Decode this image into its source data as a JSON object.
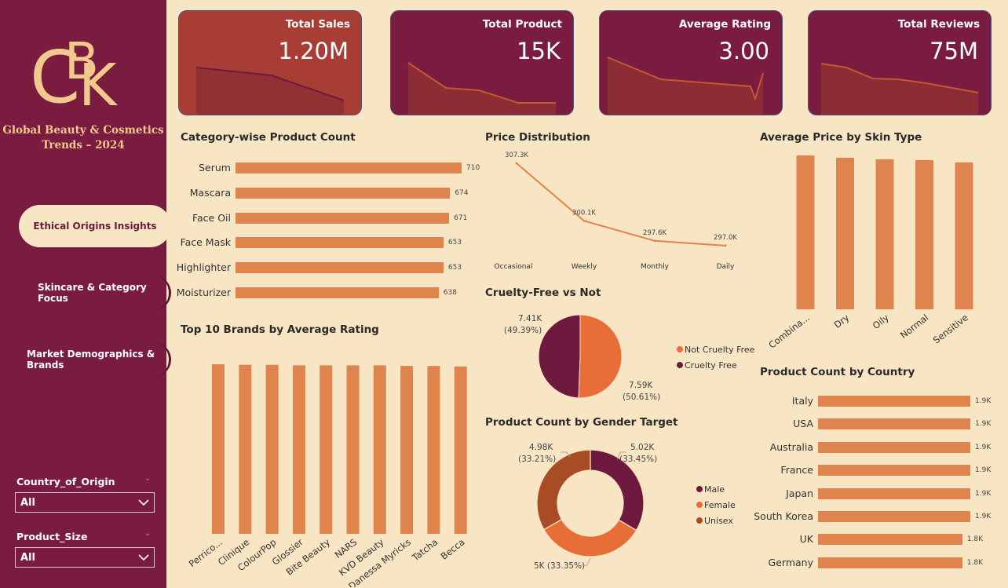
{
  "sidebar": {
    "logo_text": "CBK",
    "title_line1": "Global Beauty & Cosmetics",
    "title_line2": "Trends – 2024",
    "nav": [
      {
        "label": "Ethical Origins Insights",
        "active": true
      },
      {
        "label": "Skincare & Category Focus",
        "active": false
      },
      {
        "label": "Market Demographics & Brands",
        "active": false
      }
    ],
    "filters": [
      {
        "label": "Country_of_Origin",
        "value": "All"
      },
      {
        "label": "Product_Size",
        "value": "All"
      }
    ]
  },
  "kpis": [
    {
      "label": "Total Sales",
      "value": "1.20M"
    },
    {
      "label": "Total Product",
      "value": "15K"
    },
    {
      "label": "Average Rating",
      "value": "3.00"
    },
    {
      "label": "Total Reviews",
      "value": "75M"
    }
  ],
  "colors": {
    "sidebar": "#7a1b40",
    "background": "#f8e5c3",
    "bar": "#e0844d",
    "maroon": "#6e1a3e",
    "orange": "#e86d36",
    "brown": "#a84c25"
  },
  "chart_data": [
    {
      "type": "bar",
      "orientation": "horizontal",
      "title": "Category-wise Product Count",
      "categories": [
        "Serum",
        "Mascara",
        "Face Oil",
        "Face Mask",
        "Highlighter",
        "Moisturizer"
      ],
      "values": [
        710,
        674,
        671,
        653,
        653,
        638
      ]
    },
    {
      "type": "line",
      "title": "Price Distribution",
      "categories": [
        "Occasional",
        "Weekly",
        "Monthly",
        "Daily"
      ],
      "values": [
        307.3,
        300.1,
        297.6,
        297.0
      ],
      "labels": [
        "307.3K",
        "300.1K",
        "297.6K",
        "297.0K"
      ]
    },
    {
      "type": "bar",
      "title": "Average Price by Skin Type",
      "categories": [
        "Combina...",
        "Dry",
        "Oily",
        "Normal",
        "Sensitive"
      ],
      "values": [
        100,
        98.5,
        97.5,
        97,
        95.5
      ]
    },
    {
      "type": "pie",
      "title": "Cruelty-Free vs Not",
      "series": [
        {
          "name": "Not Cruelty Free",
          "value": 7.59,
          "label": "7.59K",
          "pct": "(50.61%)"
        },
        {
          "name": "Cruelty Free",
          "value": 7.41,
          "label": "7.41K",
          "pct": "(49.39%)"
        }
      ]
    },
    {
      "type": "bar",
      "title": "Top 10 Brands by Average Rating",
      "categories": [
        "Perrico...",
        "Clinique",
        "ColourPop",
        "Glossier",
        "Bite Beauty",
        "NARS",
        "KVD Beauty",
        "Danessa Myricks",
        "Tatcha",
        "Becca"
      ],
      "values": [
        3.05,
        3.04,
        3.04,
        3.03,
        3.03,
        3.03,
        3.03,
        3.02,
        3.02,
        3.01
      ]
    },
    {
      "type": "pie",
      "subtype": "donut",
      "title": "Product Count by Gender Target",
      "series": [
        {
          "name": "Male",
          "value": 5.02,
          "label": "5.02K",
          "pct": "(33.45%)"
        },
        {
          "name": "Female",
          "value": 5.0,
          "label": "5K (33.35%)"
        },
        {
          "name": "Unisex",
          "value": 4.98,
          "label": "4.98K",
          "pct": "(33.21%)"
        }
      ]
    },
    {
      "type": "bar",
      "orientation": "horizontal",
      "title": "Product Count by Country",
      "categories": [
        "Italy",
        "USA",
        "Australia",
        "France",
        "Japan",
        "South Korea",
        "UK",
        "Germany"
      ],
      "values": [
        1.9,
        1.9,
        1.9,
        1.9,
        1.9,
        1.9,
        1.8,
        1.8
      ],
      "labels": [
        "1.9K",
        "1.9K",
        "1.9K",
        "1.9K",
        "1.9K",
        "1.9K",
        "1.8K",
        "1.8K"
      ]
    }
  ]
}
